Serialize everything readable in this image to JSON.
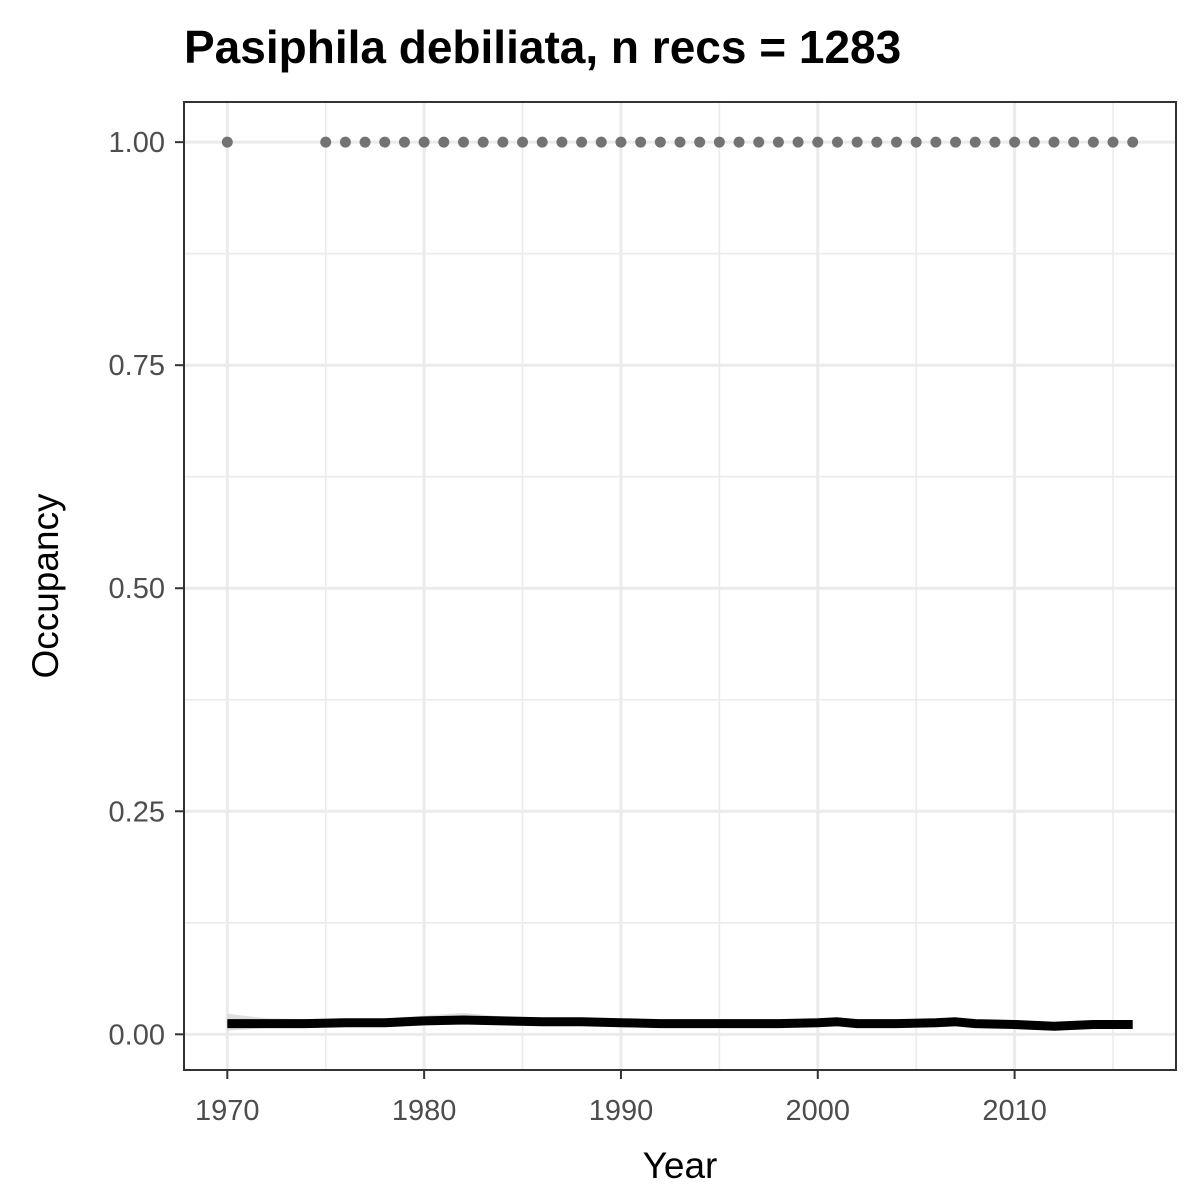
{
  "chart_data": {
    "type": "line",
    "title": "Pasiphila debiliata, n recs = 1283",
    "xlabel": "Year",
    "ylabel": "Occupancy",
    "xlim": [
      1967.8,
      2018.2
    ],
    "ylim": [
      -0.04,
      1.045
    ],
    "x_ticks": [
      1970,
      1980,
      1990,
      2000,
      2010
    ],
    "x_tick_labels": [
      "1970",
      "1980",
      "1990",
      "2000",
      "2010"
    ],
    "x_minor_ticks": [
      1975,
      1985,
      1995,
      2005,
      2015
    ],
    "y_ticks": [
      0,
      0.25,
      0.5,
      0.75,
      1
    ],
    "y_tick_labels": [
      "0.00",
      "0.25",
      "0.50",
      "0.75",
      "1.00"
    ],
    "y_minor_ticks": [
      0.125,
      0.375,
      0.625,
      0.875
    ],
    "grid": true,
    "colors": {
      "points": "#737373",
      "line": "#000000",
      "ribbon": "#d9d9d9",
      "grid": "#ebebeb",
      "panel_border": "#333333"
    },
    "series": [
      {
        "type": "scatter",
        "x": [
          1970,
          1975,
          1976,
          1977,
          1978,
          1979,
          1980,
          1981,
          1982,
          1983,
          1984,
          1985,
          1986,
          1987,
          1988,
          1989,
          1990,
          1991,
          1992,
          1993,
          1994,
          1995,
          1996,
          1997,
          1998,
          1999,
          2000,
          2001,
          2002,
          2003,
          2004,
          2005,
          2006,
          2007,
          2008,
          2009,
          2010,
          2011,
          2012,
          2013,
          2014,
          2015,
          2016
        ],
        "y": [
          1,
          1,
          1,
          1,
          1,
          1,
          1,
          1,
          1,
          1,
          1,
          1,
          1,
          1,
          1,
          1,
          1,
          1,
          1,
          1,
          1,
          1,
          1,
          1,
          1,
          1,
          1,
          1,
          1,
          1,
          1,
          1,
          1,
          1,
          1,
          1,
          1,
          1,
          1,
          1,
          1,
          1,
          1
        ]
      },
      {
        "type": "line",
        "x": [
          1970,
          1972,
          1974,
          1976,
          1978,
          1980,
          1982,
          1984,
          1986,
          1988,
          1990,
          1992,
          1994,
          1996,
          1998,
          2000,
          2001,
          2002,
          2004,
          2006,
          2007,
          2008,
          2010,
          2012,
          2014,
          2016
        ],
        "y": [
          0.012,
          0.012,
          0.012,
          0.013,
          0.013,
          0.015,
          0.016,
          0.015,
          0.014,
          0.014,
          0.013,
          0.012,
          0.012,
          0.012,
          0.012,
          0.013,
          0.014,
          0.012,
          0.012,
          0.013,
          0.014,
          0.012,
          0.011,
          0.009,
          0.011,
          0.011
        ],
        "lower": [
          0.004,
          0.007,
          0.008,
          0.009,
          0.009,
          0.01,
          0.011,
          0.011,
          0.011,
          0.011,
          0.01,
          0.01,
          0.01,
          0.01,
          0.01,
          0.01,
          0.011,
          0.01,
          0.01,
          0.01,
          0.011,
          0.01,
          0.009,
          0.007,
          0.008,
          0.008
        ],
        "upper": [
          0.023,
          0.018,
          0.017,
          0.018,
          0.018,
          0.021,
          0.024,
          0.02,
          0.018,
          0.017,
          0.016,
          0.015,
          0.015,
          0.015,
          0.015,
          0.016,
          0.017,
          0.015,
          0.015,
          0.016,
          0.017,
          0.015,
          0.014,
          0.012,
          0.014,
          0.014
        ]
      }
    ]
  }
}
